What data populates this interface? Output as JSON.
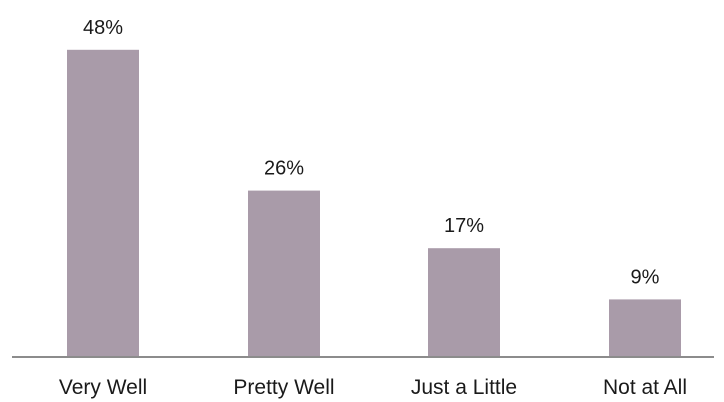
{
  "chart_data": {
    "type": "bar",
    "categories": [
      "Very Well",
      "Pretty Well",
      "Just a Little",
      "Not at All"
    ],
    "values": [
      48,
      26,
      17,
      9
    ],
    "data_labels": [
      "48%",
      "26%",
      "17%",
      "9%"
    ],
    "unit": "%",
    "title": "",
    "xlabel": "",
    "ylabel": "",
    "ylim": [
      0,
      48
    ],
    "grid": false,
    "legend": "none",
    "colors": {
      "bar": "#a99ba9",
      "axis": "#8c8c8c",
      "text": "#1a1a1a"
    }
  }
}
